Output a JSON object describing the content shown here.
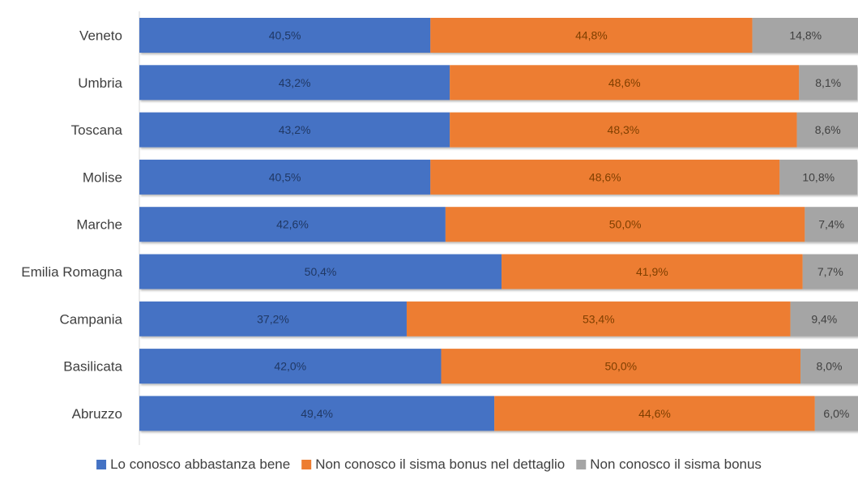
{
  "chart_data": {
    "type": "bar",
    "orientation": "horizontal",
    "stacked": true,
    "categories": [
      "Veneto",
      "Umbria",
      "Toscana",
      "Molise",
      "Marche",
      "Emilia Romagna",
      "Campania",
      "Basilicata",
      "Abruzzo"
    ],
    "series": [
      {
        "name": "Lo conosco abbastanza bene",
        "color": "#4472C4",
        "values": [
          40.5,
          43.2,
          43.2,
          40.5,
          42.6,
          50.4,
          37.2,
          42.0,
          49.4
        ],
        "labels": [
          "40,5%",
          "43,2%",
          "43,2%",
          "40,5%",
          "42,6%",
          "50,4%",
          "37,2%",
          "42,0%",
          "49,4%"
        ]
      },
      {
        "name": "Non conosco il sisma bonus nel dettaglio",
        "color": "#ED7D31",
        "values": [
          44.8,
          48.6,
          48.3,
          48.6,
          50.0,
          41.9,
          53.4,
          50.0,
          44.6
        ],
        "labels": [
          "44,8%",
          "48,6%",
          "48,3%",
          "48,6%",
          "50,0%",
          "41,9%",
          "53,4%",
          "50,0%",
          "44,6%"
        ]
      },
      {
        "name": "Non conosco il sisma bonus",
        "color": "#A5A5A5",
        "values": [
          14.8,
          8.1,
          8.6,
          10.8,
          7.4,
          7.7,
          9.4,
          8.0,
          6.0
        ],
        "labels": [
          "14,8%",
          "8,1%",
          "8,6%",
          "10,8%",
          "7,4%",
          "7,7%",
          "9,4%",
          "8,0%",
          "6,0%"
        ]
      }
    ],
    "xlim": [
      0,
      100
    ],
    "legend": "bottom",
    "grid": false
  }
}
